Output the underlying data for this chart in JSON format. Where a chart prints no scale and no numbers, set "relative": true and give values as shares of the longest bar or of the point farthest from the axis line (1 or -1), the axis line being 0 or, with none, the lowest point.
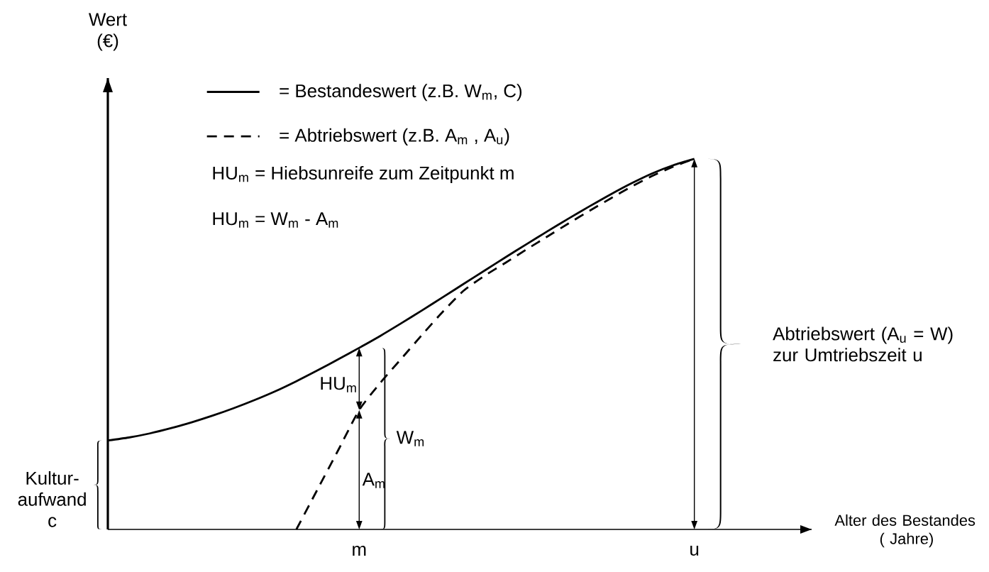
{
  "chart_data": {
    "type": "line",
    "relative": true,
    "categories": [
      null,
      null,
      null,
      null,
      null,
      null,
      null,
      null,
      null,
      null,
      null,
      null,
      "m",
      null,
      null,
      null,
      null,
      null,
      null,
      null,
      null,
      null,
      null,
      null,
      null,
      null,
      null,
      null,
      "u"
    ],
    "series": [
      {
        "name": "= Bestandeswert (z.B. W$_{m}$, C)",
        "color": "#000000",
        "line_style": "solid",
        "values": [
          0.24,
          0.248,
          0.259,
          0.273,
          0.289,
          0.307,
          0.327,
          0.349,
          0.373,
          0.4,
          0.429,
          0.459,
          0.49,
          0.522,
          0.556,
          0.591,
          0.627,
          0.663,
          0.699,
          0.735,
          0.77,
          0.805,
          0.839,
          0.872,
          0.904,
          0.934,
          0.961,
          0.983,
          1.0
        ]
      },
      {
        "name": "= Abtriebswert (z.B. A$_{m}$ , A$_{u}$)",
        "color": "#000000",
        "line_style": "dashed",
        "values": [
          null,
          null,
          null,
          null,
          null,
          null,
          null,
          null,
          null,
          0,
          0.107,
          0.214,
          0.322,
          0.395,
          0.46,
          0.525,
          0.588,
          0.645,
          0.685,
          0.72,
          0.756,
          0.791,
          0.826,
          0.86,
          0.893,
          0.925,
          0.954,
          0.979,
          1.0
        ]
      }
    ],
    "legend": "top left",
    "annotations": [
      "Wert (€)",
      "HU$_{m}$ = Hiebsunreife zum Zeitpunkt m",
      "HU$_{m}$ = W$_{m}$ - A$_{m}$",
      "HU$_{m}$",
      "W$_{m}$",
      "A$_{m}$",
      "Abtriebswert (A$_{u}$ = W) zur Umtriebszeit u",
      "Kultur-aufwand c",
      "Alter des Bestandes ( Jahre)"
    ]
  }
}
